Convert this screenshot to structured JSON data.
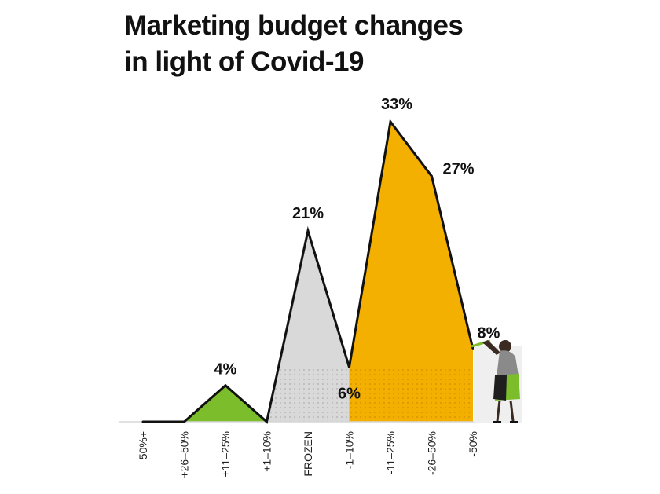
{
  "chart_data": {
    "type": "area",
    "title_lines": [
      "Marketing budget changes",
      "in light of Covid-19"
    ],
    "categories": [
      "50%+",
      "+26–50%",
      "+11–25%",
      "+1–10%",
      "FROZEN",
      "-1–10%",
      "-11–25%",
      "-26–50%",
      "-50%"
    ],
    "values": [
      0,
      0,
      4,
      0,
      21,
      6,
      33,
      27,
      8
    ],
    "data_labels": [
      "",
      "",
      "4%",
      "",
      "21%",
      "6%",
      "33%",
      "27%",
      "8%"
    ],
    "segments": [
      {
        "group": "increase",
        "from": 1,
        "to": 3,
        "color": "#7bbd2a"
      },
      {
        "group": "frozen",
        "from": 3,
        "to": 5,
        "color": "#d9d9d9"
      },
      {
        "group": "decrease",
        "from": 5,
        "to": 8,
        "color": "#f4b000"
      }
    ],
    "ylim": [
      0,
      33
    ],
    "xlabel": "",
    "ylabel": "",
    "grid": false,
    "legend": "none",
    "line_color": "#111111"
  }
}
